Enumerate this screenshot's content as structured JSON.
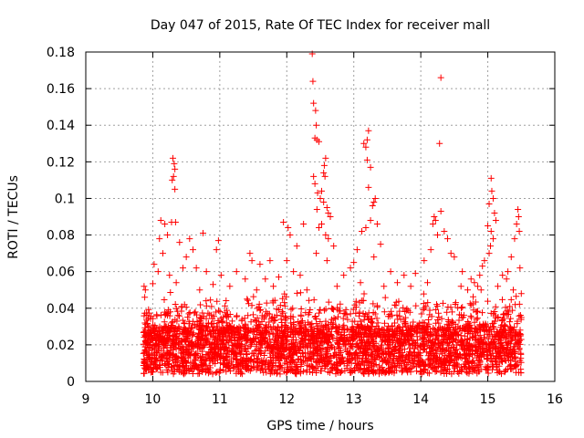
{
  "chart_data": {
    "type": "scatter",
    "title": "Day 047 of 2015, Rate Of TEC Index for receiver mall",
    "xlabel": "GPS time / hours",
    "ylabel": "ROTI / TECUs",
    "xlim": [
      9,
      16
    ],
    "ylim": [
      0,
      0.18
    ],
    "xticks": [
      "9",
      "10",
      "11",
      "12",
      "13",
      "14",
      "15",
      "16"
    ],
    "yticks": [
      "0",
      "0.02",
      "0.04",
      "0.06",
      "0.08",
      "0.1",
      "0.12",
      "0.14",
      "0.16",
      "0.18"
    ],
    "grid": true,
    "marker": "+",
    "color": "#ff0000",
    "series": [
      {
        "name": "ROTI",
        "points": [
          [
            10.3,
            0.122
          ],
          [
            10.32,
            0.119
          ],
          [
            10.33,
            0.116
          ],
          [
            10.31,
            0.112
          ],
          [
            10.29,
            0.11
          ],
          [
            10.33,
            0.105
          ],
          [
            10.12,
            0.088
          ],
          [
            10.18,
            0.086
          ],
          [
            10.28,
            0.087
          ],
          [
            10.34,
            0.087
          ],
          [
            10.1,
            0.078
          ],
          [
            10.22,
            0.08
          ],
          [
            10.4,
            0.076
          ],
          [
            10.55,
            0.078
          ],
          [
            10.75,
            0.081
          ],
          [
            10.98,
            0.077
          ],
          [
            10.95,
            0.072
          ],
          [
            11.45,
            0.07
          ],
          [
            10.6,
            0.072
          ],
          [
            10.45,
            0.062
          ],
          [
            10.5,
            0.068
          ],
          [
            11.48,
            0.066
          ],
          [
            11.6,
            0.064
          ],
          [
            11.75,
            0.066
          ],
          [
            11.95,
            0.087
          ],
          [
            12.02,
            0.084
          ],
          [
            12.05,
            0.08
          ],
          [
            12.15,
            0.074
          ],
          [
            12.0,
            0.066
          ],
          [
            12.1,
            0.06
          ],
          [
            12.2,
            0.058
          ],
          [
            12.25,
            0.086
          ],
          [
            12.38,
            0.179
          ],
          [
            12.39,
            0.164
          ],
          [
            12.4,
            0.152
          ],
          [
            12.43,
            0.148
          ],
          [
            12.44,
            0.14
          ],
          [
            12.42,
            0.133
          ],
          [
            12.45,
            0.132
          ],
          [
            12.48,
            0.131
          ],
          [
            12.4,
            0.112
          ],
          [
            12.42,
            0.108
          ],
          [
            12.46,
            0.103
          ],
          [
            12.5,
            0.1
          ],
          [
            12.52,
            0.104
          ],
          [
            12.55,
            0.114
          ],
          [
            12.56,
            0.118
          ],
          [
            12.58,
            0.122
          ],
          [
            12.57,
            0.112
          ],
          [
            12.55,
            0.098
          ],
          [
            12.6,
            0.095
          ],
          [
            12.62,
            0.092
          ],
          [
            12.65,
            0.09
          ],
          [
            12.45,
            0.094
          ],
          [
            12.48,
            0.084
          ],
          [
            12.52,
            0.086
          ],
          [
            12.58,
            0.08
          ],
          [
            12.62,
            0.078
          ],
          [
            12.7,
            0.074
          ],
          [
            12.44,
            0.07
          ],
          [
            12.6,
            0.066
          ],
          [
            13.15,
            0.13
          ],
          [
            13.2,
            0.132
          ],
          [
            13.22,
            0.137
          ],
          [
            13.18,
            0.128
          ],
          [
            13.2,
            0.121
          ],
          [
            13.25,
            0.117
          ],
          [
            13.22,
            0.106
          ],
          [
            13.3,
            0.098
          ],
          [
            13.32,
            0.1
          ],
          [
            13.28,
            0.096
          ],
          [
            13.12,
            0.082
          ],
          [
            13.18,
            0.084
          ],
          [
            13.25,
            0.088
          ],
          [
            13.35,
            0.086
          ],
          [
            13.4,
            0.075
          ],
          [
            13.05,
            0.072
          ],
          [
            13.3,
            0.068
          ],
          [
            13.0,
            0.065
          ],
          [
            14.3,
            0.166
          ],
          [
            14.28,
            0.13
          ],
          [
            14.2,
            0.09
          ],
          [
            14.18,
            0.086
          ],
          [
            14.22,
            0.088
          ],
          [
            14.3,
            0.093
          ],
          [
            14.25,
            0.08
          ],
          [
            14.35,
            0.082
          ],
          [
            14.4,
            0.078
          ],
          [
            14.15,
            0.072
          ],
          [
            14.45,
            0.07
          ],
          [
            14.5,
            0.068
          ],
          [
            15.05,
            0.111
          ],
          [
            15.06,
            0.104
          ],
          [
            15.08,
            0.1
          ],
          [
            15.02,
            0.097
          ],
          [
            15.1,
            0.092
          ],
          [
            15.12,
            0.088
          ],
          [
            15.0,
            0.085
          ],
          [
            15.05,
            0.082
          ],
          [
            15.08,
            0.078
          ],
          [
            15.04,
            0.074
          ],
          [
            15.02,
            0.07
          ],
          [
            14.95,
            0.066
          ],
          [
            14.92,
            0.063
          ],
          [
            15.45,
            0.094
          ],
          [
            15.46,
            0.09
          ],
          [
            15.43,
            0.086
          ],
          [
            15.47,
            0.082
          ],
          [
            15.4,
            0.078
          ],
          [
            15.35,
            0.068
          ],
          [
            15.3,
            0.06
          ],
          [
            15.48,
            0.062
          ],
          [
            14.75,
            0.056
          ],
          [
            14.8,
            0.054
          ],
          [
            14.85,
            0.052
          ],
          [
            14.9,
            0.05
          ],
          [
            14.88,
            0.058
          ],
          [
            10.02,
            0.064
          ],
          [
            10.08,
            0.06
          ],
          [
            10.25,
            0.058
          ],
          [
            10.15,
            0.07
          ],
          [
            10.65,
            0.062
          ],
          [
            10.8,
            0.06
          ],
          [
            11.02,
            0.058
          ],
          [
            11.25,
            0.06
          ],
          [
            11.38,
            0.056
          ],
          [
            11.68,
            0.056
          ],
          [
            11.88,
            0.057
          ],
          [
            12.85,
            0.058
          ],
          [
            12.95,
            0.062
          ],
          [
            13.55,
            0.06
          ],
          [
            13.75,
            0.058
          ],
          [
            13.92,
            0.059
          ],
          [
            14.05,
            0.066
          ],
          [
            14.62,
            0.06
          ],
          [
            15.22,
            0.058
          ],
          [
            15.28,
            0.056
          ],
          [
            9.87,
            0.052
          ],
          [
            9.89,
            0.05
          ],
          [
            9.88,
            0.046
          ],
          [
            10.35,
            0.054
          ],
          [
            10.7,
            0.05
          ],
          [
            10.9,
            0.053
          ],
          [
            11.15,
            0.052
          ],
          [
            11.55,
            0.05
          ],
          [
            11.8,
            0.052
          ],
          [
            12.3,
            0.05
          ],
          [
            12.75,
            0.052
          ],
          [
            13.1,
            0.054
          ],
          [
            13.45,
            0.052
          ],
          [
            13.65,
            0.054
          ],
          [
            13.85,
            0.052
          ],
          [
            14.1,
            0.054
          ],
          [
            14.6,
            0.052
          ],
          [
            14.7,
            0.05
          ],
          [
            15.15,
            0.052
          ],
          [
            15.38,
            0.05
          ],
          [
            15.5,
            0.048
          ]
        ]
      }
    ]
  }
}
